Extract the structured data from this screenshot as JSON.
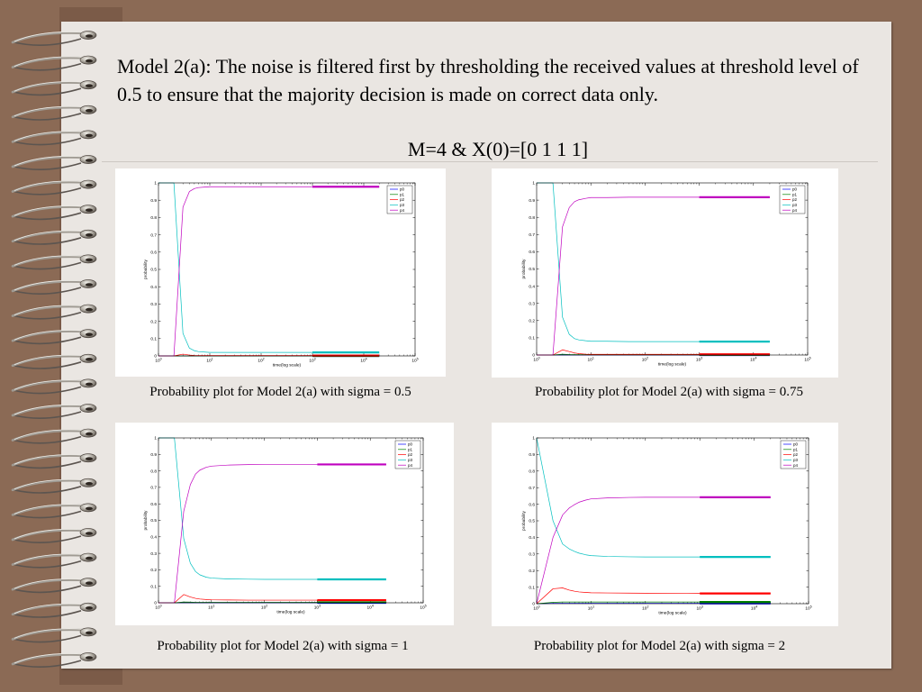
{
  "theme": {
    "background": "#8B6A55",
    "paper": "#EAE6E2"
  },
  "slide": {
    "heading": "Model 2(a): The noise is filtered first by thresholding the received values at threshold level of 0.5 to ensure that the majority decision is made on correct data only.",
    "subheading": "M=4 & X(0)=[0 1 1 1]"
  },
  "chart_data": [
    {
      "type": "line",
      "caption": "Probability plot for Model 2(a) with sigma = 0.5",
      "xlabel": "time(log scale)",
      "ylabel": "probability",
      "x_scale": "log",
      "xlim": [
        1,
        100000
      ],
      "ylim": [
        0,
        1
      ],
      "x_ticks": [
        1,
        10,
        100,
        1000,
        10000,
        100000
      ],
      "y_ticks": [
        0,
        0.1,
        0.2,
        0.3,
        0.4,
        0.5,
        0.6,
        0.7,
        0.8,
        0.9,
        1
      ],
      "grid": false,
      "legend": "top-right",
      "x": [
        1,
        2,
        3,
        4,
        5,
        6,
        8,
        10,
        20,
        50,
        100,
        1000,
        3000,
        10000,
        20000
      ],
      "series": [
        {
          "name": "p0",
          "color": "#0000FF",
          "values": [
            0,
            0,
            0,
            0,
            0,
            0,
            0,
            0,
            0,
            0,
            0,
            0,
            0,
            0,
            0
          ]
        },
        {
          "name": "p1",
          "color": "#008000",
          "values": [
            0,
            0,
            0,
            0,
            0,
            0,
            0,
            0,
            0,
            0,
            0,
            0,
            0,
            0,
            0
          ]
        },
        {
          "name": "p2",
          "color": "#FF0000",
          "values": [
            0,
            0,
            0.01,
            0.005,
            0.003,
            0.002,
            0.002,
            0.002,
            0.002,
            0.002,
            0.002,
            0.002,
            0.002,
            0.002,
            0.002
          ]
        },
        {
          "name": "p3",
          "color": "#00BFBF",
          "values": [
            1,
            1,
            0.13,
            0.045,
            0.03,
            0.025,
            0.022,
            0.02,
            0.02,
            0.02,
            0.02,
            0.02,
            0.02,
            0.02,
            0.02
          ]
        },
        {
          "name": "p4",
          "color": "#BF00BF",
          "values": [
            0,
            0,
            0.86,
            0.95,
            0.967,
            0.973,
            0.976,
            0.978,
            0.978,
            0.978,
            0.978,
            0.978,
            0.978,
            0.978,
            0.978
          ]
        }
      ]
    },
    {
      "type": "line",
      "caption": "Probability plot for Model 2(a) with sigma = 0.75",
      "xlabel": "time(log scale)",
      "ylabel": "probability",
      "x_scale": "log",
      "xlim": [
        1,
        100000
      ],
      "ylim": [
        0,
        1
      ],
      "x_ticks": [
        1,
        10,
        100,
        1000,
        10000,
        100000
      ],
      "y_ticks": [
        0,
        0.1,
        0.2,
        0.3,
        0.4,
        0.5,
        0.6,
        0.7,
        0.8,
        0.9,
        1
      ],
      "grid": false,
      "legend": "top-right",
      "x": [
        1,
        2,
        3,
        4,
        5,
        6,
        8,
        10,
        20,
        50,
        100,
        1000,
        3000,
        10000,
        20000
      ],
      "series": [
        {
          "name": "p0",
          "color": "#0000FF",
          "values": [
            0,
            0,
            0,
            0,
            0,
            0,
            0,
            0,
            0,
            0,
            0,
            0,
            0,
            0,
            0
          ]
        },
        {
          "name": "p1",
          "color": "#008000",
          "values": [
            0,
            0,
            0.005,
            0.003,
            0.002,
            0.002,
            0.002,
            0.001,
            0.001,
            0.001,
            0.001,
            0.001,
            0.001,
            0.001,
            0.001
          ]
        },
        {
          "name": "p2",
          "color": "#FF0000",
          "values": [
            0,
            0,
            0.03,
            0.02,
            0.012,
            0.008,
            0.005,
            0.004,
            0.004,
            0.004,
            0.004,
            0.004,
            0.004,
            0.004,
            0.004
          ]
        },
        {
          "name": "p3",
          "color": "#00BFBF",
          "values": [
            1,
            1,
            0.22,
            0.12,
            0.095,
            0.088,
            0.083,
            0.08,
            0.08,
            0.078,
            0.078,
            0.078,
            0.078,
            0.078,
            0.078
          ]
        },
        {
          "name": "p4",
          "color": "#BF00BF",
          "values": [
            0,
            0,
            0.745,
            0.857,
            0.891,
            0.902,
            0.91,
            0.915,
            0.915,
            0.917,
            0.917,
            0.917,
            0.917,
            0.917,
            0.917
          ]
        }
      ]
    },
    {
      "type": "line",
      "caption": "Probability plot for Model 2(a) with sigma = 1",
      "xlabel": "time(log scale)",
      "ylabel": "probability",
      "x_scale": "log",
      "xlim": [
        1,
        100000
      ],
      "ylim": [
        0,
        1
      ],
      "x_ticks": [
        1,
        10,
        100,
        1000,
        10000,
        100000
      ],
      "y_ticks": [
        0,
        0.1,
        0.2,
        0.3,
        0.4,
        0.5,
        0.6,
        0.7,
        0.8,
        0.9,
        1
      ],
      "grid": false,
      "legend": "top-right",
      "x": [
        1,
        2,
        3,
        4,
        5,
        6,
        8,
        10,
        20,
        50,
        100,
        1000,
        3000,
        10000,
        20000
      ],
      "series": [
        {
          "name": "p0",
          "color": "#0000FF",
          "values": [
            0,
            0,
            0,
            0,
            0,
            0,
            0,
            0,
            0,
            0,
            0,
            0,
            0,
            0,
            0
          ]
        },
        {
          "name": "p1",
          "color": "#008000",
          "values": [
            0,
            0,
            0.005,
            0.004,
            0.003,
            0.003,
            0.003,
            0.003,
            0.003,
            0.003,
            0.003,
            0.003,
            0.003,
            0.003,
            0.003
          ]
        },
        {
          "name": "p2",
          "color": "#FF0000",
          "values": [
            0,
            0,
            0.05,
            0.035,
            0.027,
            0.023,
            0.02,
            0.018,
            0.017,
            0.016,
            0.016,
            0.016,
            0.016,
            0.016,
            0.016
          ]
        },
        {
          "name": "p3",
          "color": "#00BFBF",
          "values": [
            1,
            1,
            0.39,
            0.24,
            0.19,
            0.17,
            0.155,
            0.15,
            0.145,
            0.143,
            0.142,
            0.142,
            0.142,
            0.142,
            0.142
          ]
        },
        {
          "name": "p4",
          "color": "#BF00BF",
          "values": [
            0,
            0,
            0.555,
            0.717,
            0.78,
            0.804,
            0.822,
            0.829,
            0.835,
            0.838,
            0.839,
            0.839,
            0.839,
            0.839,
            0.839
          ]
        }
      ]
    },
    {
      "type": "line",
      "caption": "Probability plot for Model 2(a) with sigma = 2",
      "xlabel": "time(log scale)",
      "ylabel": "probability",
      "x_scale": "log",
      "xlim": [
        1,
        100000
      ],
      "ylim": [
        0,
        1
      ],
      "x_ticks": [
        1,
        10,
        100,
        1000,
        10000,
        100000
      ],
      "y_ticks": [
        0,
        0.1,
        0.2,
        0.3,
        0.4,
        0.5,
        0.6,
        0.7,
        0.8,
        0.9,
        1
      ],
      "grid": false,
      "legend": "top-right",
      "x": [
        1,
        2,
        3,
        4,
        5,
        6,
        8,
        10,
        20,
        50,
        100,
        1000,
        3000,
        10000,
        20000
      ],
      "series": [
        {
          "name": "p0",
          "color": "#0000FF",
          "values": [
            0,
            0.002,
            0.002,
            0.002,
            0.002,
            0.002,
            0.002,
            0.002,
            0.002,
            0.002,
            0.002,
            0.002,
            0.002,
            0.002,
            0.002
          ]
        },
        {
          "name": "p1",
          "color": "#008000",
          "values": [
            0,
            0.008,
            0.01,
            0.01,
            0.01,
            0.01,
            0.01,
            0.01,
            0.01,
            0.01,
            0.01,
            0.01,
            0.01,
            0.01,
            0.01
          ]
        },
        {
          "name": "p2",
          "color": "#FF0000",
          "values": [
            0,
            0.09,
            0.095,
            0.082,
            0.075,
            0.071,
            0.068,
            0.066,
            0.065,
            0.064,
            0.063,
            0.062,
            0.062,
            0.062,
            0.062
          ]
        },
        {
          "name": "p3",
          "color": "#00BFBF",
          "values": [
            1,
            0.5,
            0.36,
            0.33,
            0.315,
            0.305,
            0.295,
            0.29,
            0.285,
            0.283,
            0.282,
            0.282,
            0.282,
            0.282,
            0.282
          ]
        },
        {
          "name": "p4",
          "color": "#BF00BF",
          "values": [
            0,
            0.4,
            0.535,
            0.578,
            0.598,
            0.612,
            0.625,
            0.632,
            0.638,
            0.641,
            0.642,
            0.642,
            0.642,
            0.642,
            0.642
          ]
        }
      ]
    }
  ]
}
